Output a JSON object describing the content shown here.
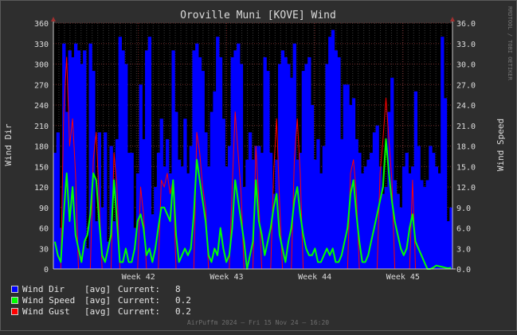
{
  "chart_data": {
    "type": "line",
    "title": "Oroville Muni [KOVE] Wind",
    "ylabel_left": "Wind Dir",
    "ylabel_right": "Wind Speed",
    "side_credit": "RRDTOOL / TOBI OETIKER",
    "footer": "AirPuffm 2024 – Fri 15 Nov 24 – 16:20",
    "left_axis": {
      "min": 0,
      "max": 360,
      "ticks": [
        "0",
        "30",
        "60",
        "90",
        "120",
        "150",
        "180",
        "210",
        "240",
        "270",
        "300",
        "330",
        "360"
      ]
    },
    "right_axis": {
      "min": 0,
      "max": 36,
      "ticks": [
        "0.0",
        "3.0",
        "6.0",
        "9.0",
        "12.0",
        "15.0",
        "18.0",
        "21.0",
        "24.0",
        "27.0",
        "30.0",
        "33.0",
        "36.0"
      ]
    },
    "x_ticks": [
      {
        "label": "Week 42",
        "pos": 0.213
      },
      {
        "label": "Week 43",
        "pos": 0.434
      },
      {
        "label": "Week 44",
        "pos": 0.655
      },
      {
        "label": "Week 45",
        "pos": 0.876
      }
    ],
    "grid": true,
    "legend_placement": "bottom-left",
    "colors": {
      "dir": "#0000ff",
      "speed": "#00ff00",
      "gust": "#ff0000"
    },
    "series": [
      {
        "name": "Wind Dir",
        "key": "dir",
        "cf": "[avg]",
        "current_label": "Current:",
        "current": "8",
        "values": [
          170,
          200,
          60,
          330,
          230,
          320,
          310,
          330,
          320,
          300,
          320,
          30,
          330,
          290,
          70,
          200,
          90,
          200,
          40,
          180,
          70,
          190,
          340,
          320,
          300,
          170,
          170,
          60,
          140,
          270,
          190,
          320,
          340,
          80,
          120,
          170,
          220,
          150,
          190,
          140,
          320,
          230,
          160,
          150,
          220,
          140,
          180,
          320,
          330,
          310,
          290,
          200,
          150,
          230,
          260,
          340,
          310,
          220,
          150,
          180,
          310,
          320,
          330,
          300,
          120,
          160,
          200,
          160,
          180,
          180,
          170,
          310,
          290,
          170,
          110,
          160,
          300,
          320,
          310,
          300,
          280,
          330,
          160,
          170,
          290,
          300,
          310,
          240,
          160,
          190,
          140,
          180,
          300,
          340,
          350,
          320,
          310,
          190,
          270,
          270,
          240,
          250,
          190,
          170,
          140,
          150,
          160,
          170,
          200,
          210,
          150,
          110,
          120,
          230,
          280,
          130,
          110,
          90,
          150,
          170,
          140,
          150,
          260,
          180,
          130,
          120,
          130,
          180,
          170,
          150,
          140,
          340,
          250,
          70,
          90
        ]
      },
      {
        "name": "Wind Speed",
        "key": "speed",
        "cf": "[avg]",
        "current_label": "Current:",
        "current": "0.2",
        "values": [
          4,
          2,
          1,
          8,
          14,
          7,
          12,
          5,
          3,
          1,
          4,
          5,
          8,
          14,
          13,
          7,
          2,
          1,
          3,
          5,
          13,
          7,
          1,
          1,
          3,
          1,
          1,
          3,
          7,
          8,
          6,
          2,
          3,
          1,
          3,
          6,
          9,
          9,
          8,
          7,
          13,
          5,
          1,
          2,
          3,
          2,
          3,
          8,
          16,
          13,
          10,
          7,
          2,
          1,
          3,
          2,
          6,
          3,
          1,
          2,
          6,
          13,
          10,
          7,
          4,
          0,
          2,
          4,
          13,
          7,
          5,
          2,
          4,
          6,
          9,
          11,
          5,
          3,
          1,
          4,
          6,
          10,
          12,
          8,
          5,
          3,
          2,
          2,
          3,
          1,
          1,
          2,
          3,
          2,
          3,
          1,
          1,
          2,
          4,
          6,
          11,
          13,
          8,
          4,
          1,
          1,
          2,
          4,
          6,
          8,
          10,
          12,
          19,
          14,
          10,
          7,
          5,
          3,
          2,
          3,
          6,
          8,
          4,
          3,
          2,
          1,
          0,
          0,
          0.2,
          0.5,
          0.4,
          0.3,
          0.2,
          0.1,
          0.2
        ]
      },
      {
        "name": "Wind Gust",
        "key": "gust",
        "cf": "[avg]",
        "current_label": "Current:",
        "current": "0.2",
        "values": [
          0,
          0,
          0,
          23,
          31,
          18,
          22,
          14,
          0,
          0,
          0,
          0,
          0,
          16,
          20,
          10,
          0,
          0,
          0,
          0,
          17,
          12,
          0,
          0,
          0,
          0,
          0,
          0,
          0,
          12,
          8,
          0,
          0,
          0,
          0,
          0,
          13,
          12,
          14,
          11,
          13,
          0,
          0,
          0,
          0,
          0,
          0,
          0,
          20,
          17,
          12,
          9,
          0,
          0,
          0,
          0,
          0,
          0,
          0,
          0,
          12,
          23,
          17,
          11,
          0,
          0,
          0,
          0,
          18,
          10,
          0,
          0,
          0,
          0,
          14,
          22,
          10,
          0,
          0,
          0,
          0,
          16,
          22,
          14,
          0,
          0,
          0,
          0,
          0,
          0,
          0,
          0,
          0,
          0,
          0,
          0,
          0,
          0,
          0,
          0,
          14,
          16,
          11,
          0,
          0,
          0,
          0,
          0,
          0,
          0,
          14,
          19,
          25,
          19,
          13,
          0,
          0,
          0,
          0,
          0,
          0,
          13,
          0,
          0,
          0,
          0,
          0,
          0,
          0,
          0,
          0,
          0,
          0,
          0,
          0
        ]
      }
    ]
  }
}
